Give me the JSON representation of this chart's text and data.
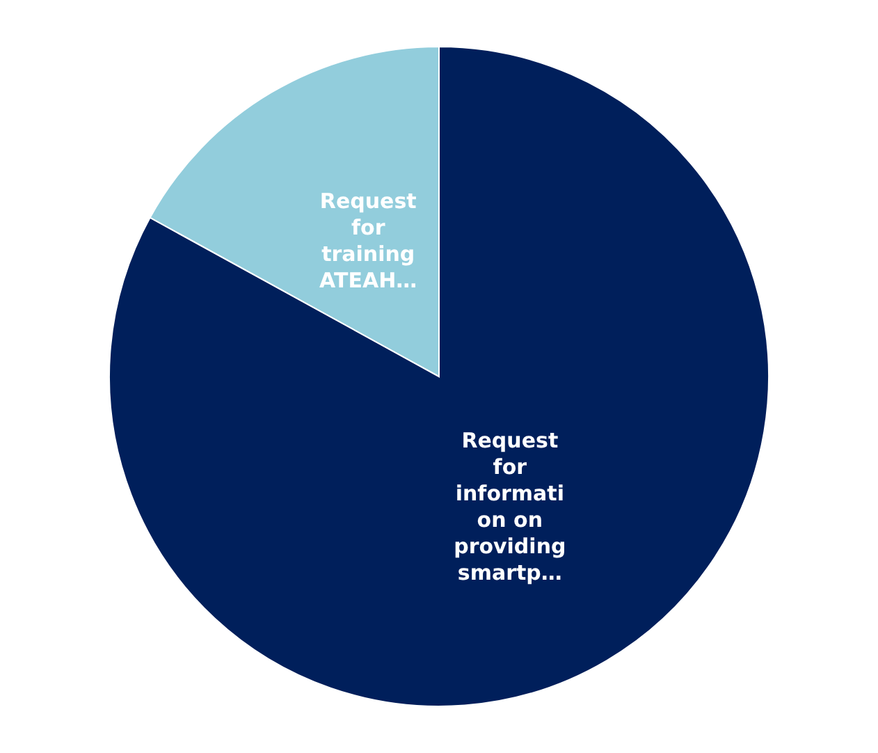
{
  "chart_data": {
    "type": "pie",
    "categories": [
      "Request for information on providing smartp…",
      "Request for training ATEAH…"
    ],
    "values": [
      83,
      17
    ],
    "colors": [
      "#001f5b",
      "#92cddc"
    ],
    "legend": false
  }
}
